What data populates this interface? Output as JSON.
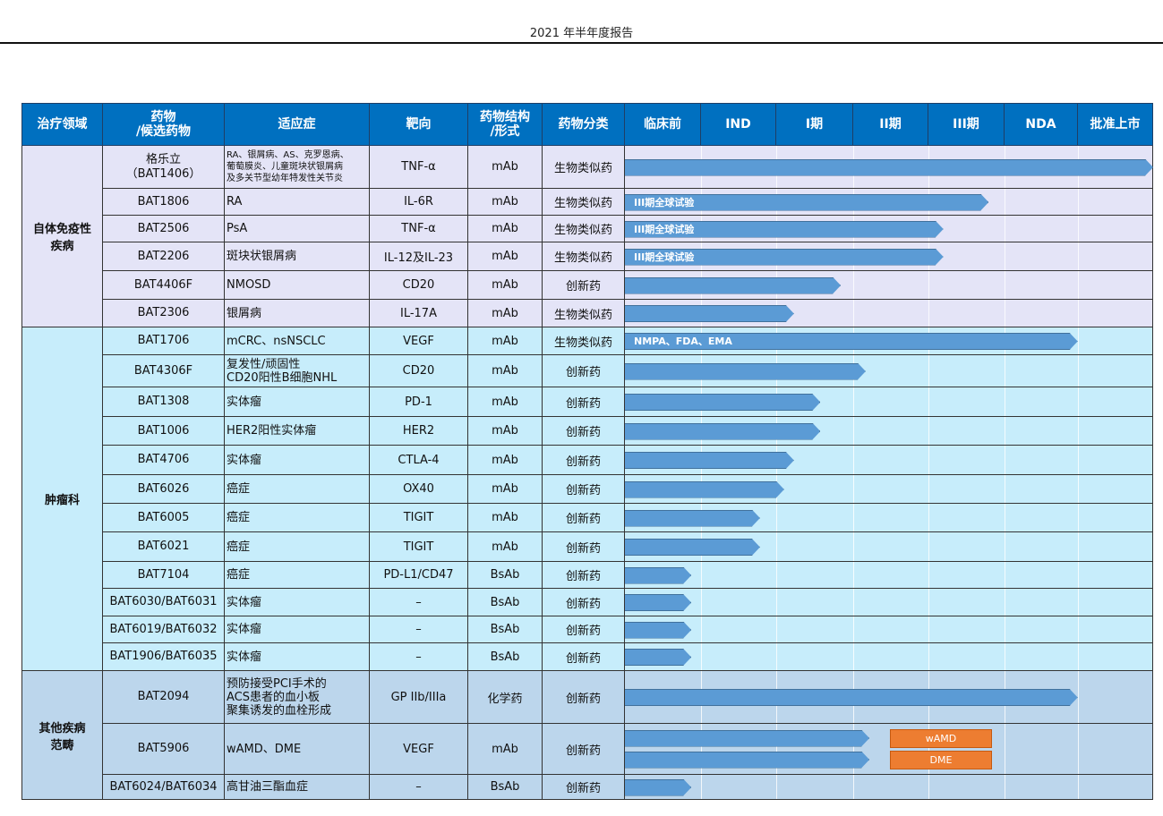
{
  "page_header": "2021 年半年度报告",
  "columns": [
    "治疗领域",
    "药物\n/候选药物",
    "适应症",
    "靶向",
    "药物结构\n/形式",
    "药物分类",
    "临床前",
    "IND",
    "I期",
    "II期",
    "III期",
    "NDA",
    "批准上市"
  ],
  "groups": [
    {
      "area": "自体免疫性\n疾病",
      "rows": [
        {
          "drug": "格乐立\n（BAT1406）",
          "indication": "RA、银屑病、AS、克罗恩病、\n葡萄膜炎、儿童斑块状银屑病\n及多关节型幼年特发性关节炎",
          "target": "TNF-α",
          "form": "mAb",
          "category": "生物类似药",
          "bars": [
            {
              "stage_progress": 7.0,
              "label": ""
            }
          ]
        },
        {
          "drug": "BAT1806",
          "indication": "RA",
          "target": "IL-6R",
          "form": "mAb",
          "category": "生物类似药",
          "bars": [
            {
              "stage_progress": 4.82,
              "label": "III期全球试验"
            }
          ]
        },
        {
          "drug": "BAT2506",
          "indication": "PsA",
          "target": "TNF-α",
          "form": "mAb",
          "category": "生物类似药",
          "bars": [
            {
              "stage_progress": 4.22,
              "label": "III期全球试验"
            }
          ]
        },
        {
          "drug": "BAT2206",
          "indication": "斑块状银屑病",
          "target": "IL-12及IL-23",
          "form": "mAb",
          "category": "生物类似药",
          "bars": [
            {
              "stage_progress": 4.22,
              "label": "III期全球试验"
            }
          ]
        },
        {
          "drug": "BAT4406F",
          "indication": "NMOSD",
          "target": "CD20",
          "form": "mAb",
          "category": "创新药",
          "bars": [
            {
              "stage_progress": 2.86,
              "label": ""
            }
          ]
        },
        {
          "drug": "BAT2306",
          "indication": "银屑病",
          "target": "IL-17A",
          "form": "mAb",
          "category": "生物类似药",
          "bars": [
            {
              "stage_progress": 2.24,
              "label": ""
            }
          ]
        }
      ]
    },
    {
      "area": "肿瘤科",
      "rows": [
        {
          "drug": "BAT1706",
          "indication": "mCRC、nsNSCLC",
          "target": "VEGF",
          "form": "mAb",
          "category": "生物类似药",
          "bars": [
            {
              "stage_progress": 6.0,
              "label": "NMPA、FDA、EMA"
            }
          ]
        },
        {
          "drug": "BAT4306F",
          "indication": "复发性/顽固性\nCD20阳性B细胞NHL",
          "target": "CD20",
          "form": "mAb",
          "category": "创新药",
          "bars": [
            {
              "stage_progress": 3.19,
              "label": ""
            }
          ]
        },
        {
          "drug": "BAT1308",
          "indication": "实体瘤",
          "target": "PD-1",
          "form": "mAb",
          "category": "创新药",
          "bars": [
            {
              "stage_progress": 2.59,
              "label": ""
            }
          ]
        },
        {
          "drug": "BAT1006",
          "indication": "HER2阳性实体瘤",
          "target": "HER2",
          "form": "mAb",
          "category": "创新药",
          "bars": [
            {
              "stage_progress": 2.59,
              "label": ""
            }
          ]
        },
        {
          "drug": "BAT4706",
          "indication": "实体瘤",
          "target": "CTLA-4",
          "form": "mAb",
          "category": "创新药",
          "bars": [
            {
              "stage_progress": 2.24,
              "label": ""
            }
          ]
        },
        {
          "drug": "BAT6026",
          "indication": "癌症",
          "target": "OX40",
          "form": "mAb",
          "category": "创新药",
          "bars": [
            {
              "stage_progress": 2.11,
              "label": ""
            }
          ]
        },
        {
          "drug": "BAT6005",
          "indication": "癌症",
          "target": "TIGIT",
          "form": "mAb",
          "category": "创新药",
          "bars": [
            {
              "stage_progress": 1.79,
              "label": ""
            }
          ]
        },
        {
          "drug": "BAT6021",
          "indication": "癌症",
          "target": "TIGIT",
          "form": "mAb",
          "category": "创新药",
          "bars": [
            {
              "stage_progress": 1.79,
              "label": ""
            }
          ]
        },
        {
          "drug": "BAT7104",
          "indication": "癌症",
          "target": "PD-L1/CD47",
          "form": "BsAb",
          "category": "创新药",
          "bars": [
            {
              "stage_progress": 0.88,
              "label": ""
            }
          ]
        },
        {
          "drug": "BAT6030/BAT6031",
          "indication": "实体瘤",
          "target": "–",
          "form": "BsAb",
          "category": "创新药",
          "bars": [
            {
              "stage_progress": 0.88,
              "label": ""
            }
          ]
        },
        {
          "drug": "BAT6019/BAT6032",
          "indication": "实体瘤",
          "target": "–",
          "form": "BsAb",
          "category": "创新药",
          "bars": [
            {
              "stage_progress": 0.88,
              "label": ""
            }
          ]
        },
        {
          "drug": "BAT1906/BAT6035",
          "indication": "实体瘤",
          "target": "–",
          "form": "BsAb",
          "category": "创新药",
          "bars": [
            {
              "stage_progress": 0.88,
              "label": ""
            }
          ]
        }
      ]
    },
    {
      "area": "其他疾病\n范畴",
      "rows": [
        {
          "drug": "BAT2094",
          "indication": "预防接受PCI手术的\nACS患者的血小板\n聚集诱发的血栓形成",
          "target": "GP IIb/IIIa",
          "form": "化学药",
          "category": "创新药",
          "bars": [
            {
              "stage_progress": 6.0,
              "label": ""
            }
          ]
        },
        {
          "drug": "BAT5906",
          "indication": "wAMD、DME",
          "target": "VEGF",
          "form": "mAb",
          "category": "创新药",
          "bars": [
            {
              "stage_progress": 3.24,
              "label": ""
            },
            {
              "stage_progress": 3.24,
              "label": ""
            }
          ],
          "tags": [
            "wAMD",
            "DME"
          ]
        },
        {
          "drug": "BAT6024/BAT6034",
          "indication": "高甘油三酯血症",
          "target": "–",
          "form": "BsAb",
          "category": "创新药",
          "bars": [
            {
              "stage_progress": 0.88,
              "label": ""
            }
          ]
        }
      ]
    }
  ],
  "colors": {
    "header": "#0070c0",
    "bar": "#5b9bd5",
    "tag": "#ed7d31"
  }
}
